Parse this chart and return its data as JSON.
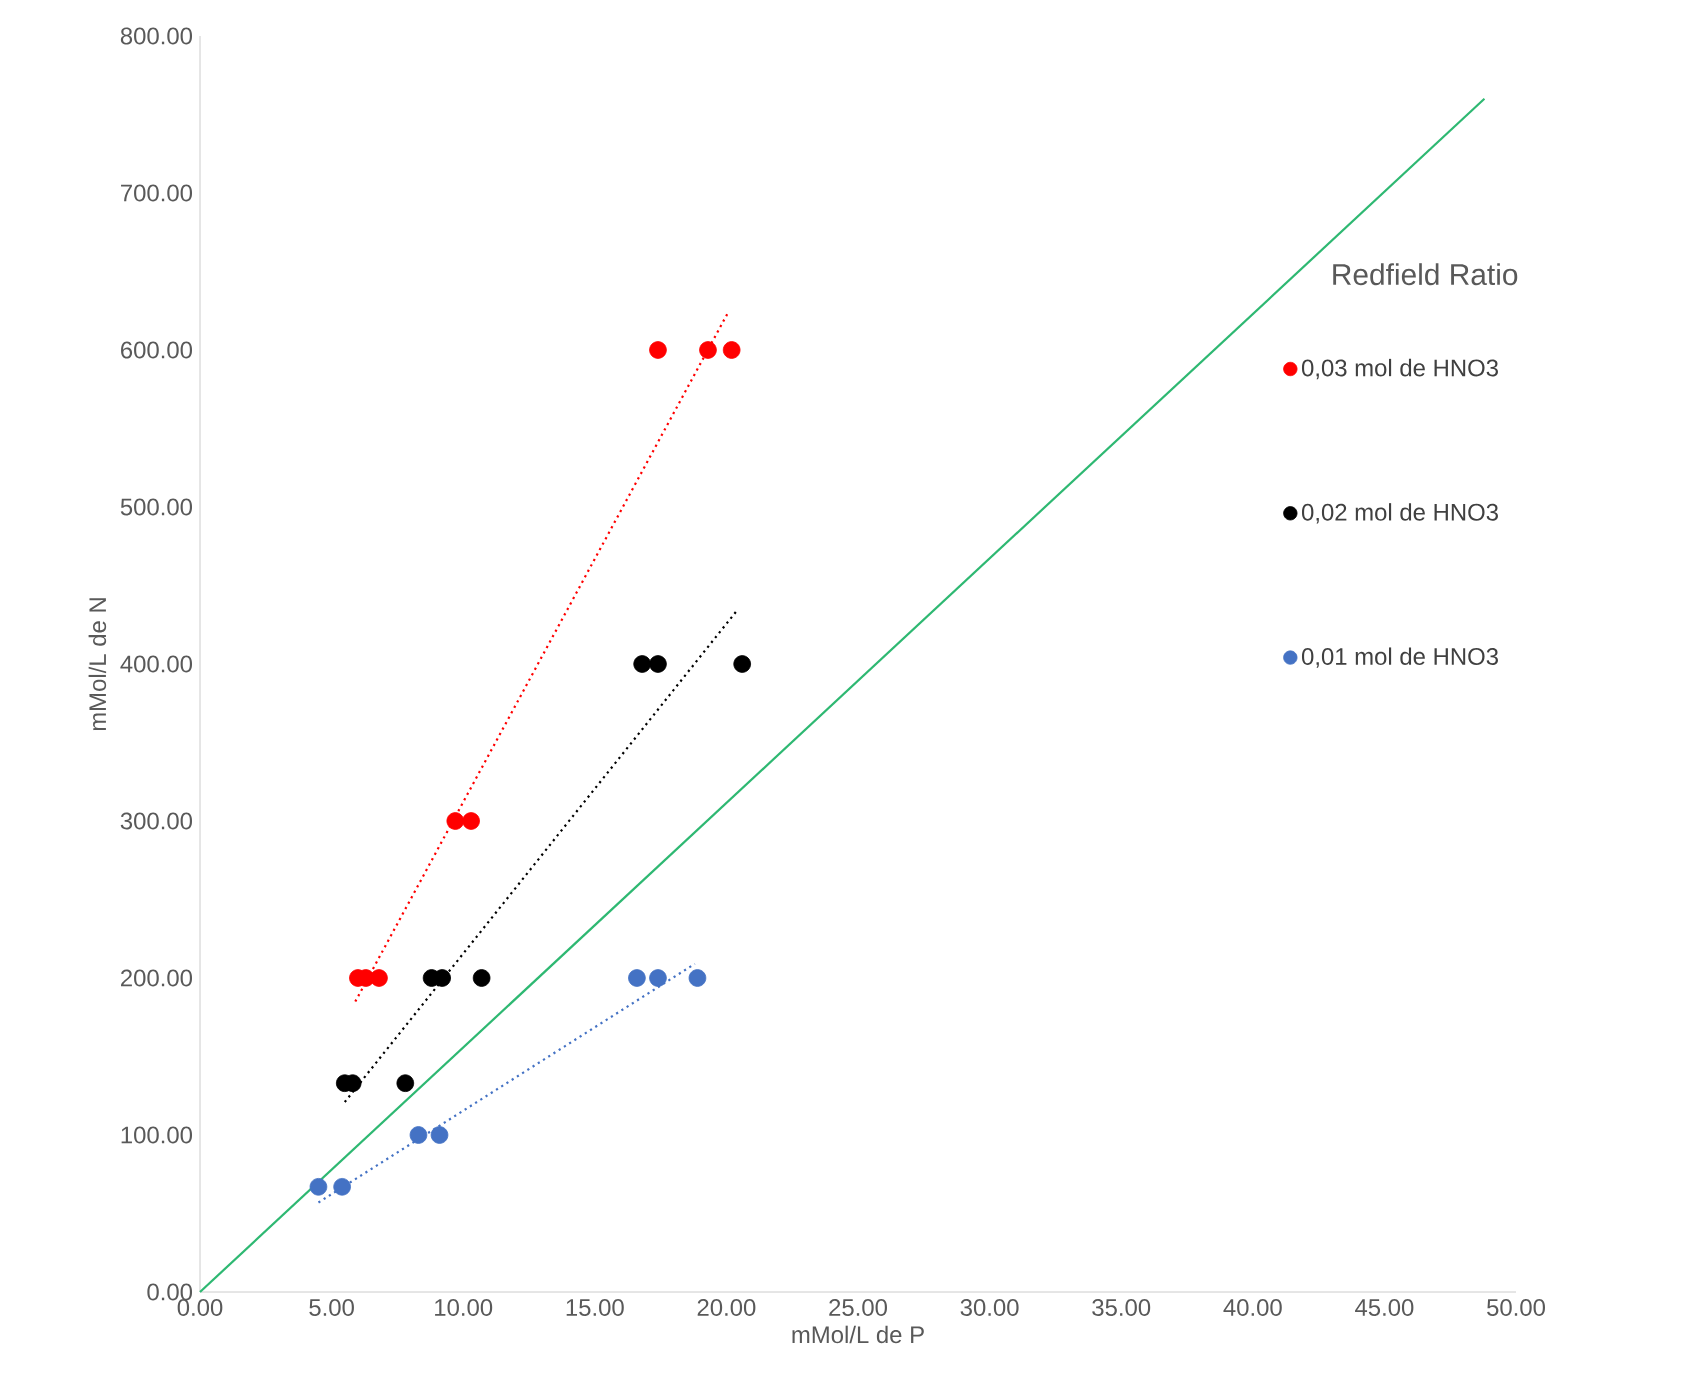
{
  "chart_data": {
    "type": "scatter",
    "xlabel": "mMol/L de P",
    "ylabel": "mMol/L de N",
    "xlim": [
      0,
      50
    ],
    "ylim": [
      0,
      800
    ],
    "xticks": [
      {
        "value": 0,
        "label": "0.00"
      },
      {
        "value": 5,
        "label": "5.00"
      },
      {
        "value": 10,
        "label": "10.00"
      },
      {
        "value": 15,
        "label": "15.00"
      },
      {
        "value": 20,
        "label": "20.00"
      },
      {
        "value": 25,
        "label": "25.00"
      },
      {
        "value": 30,
        "label": "30.00"
      },
      {
        "value": 35,
        "label": "35.00"
      },
      {
        "value": 40,
        "label": "40.00"
      },
      {
        "value": 45,
        "label": "45.00"
      },
      {
        "value": 50,
        "label": "50.00"
      }
    ],
    "yticks": [
      {
        "value": 0,
        "label": "0.00"
      },
      {
        "value": 100,
        "label": "100.00"
      },
      {
        "value": 200,
        "label": "200.00"
      },
      {
        "value": 300,
        "label": "300.00"
      },
      {
        "value": 400,
        "label": "400.00"
      },
      {
        "value": 500,
        "label": "500.00"
      },
      {
        "value": 600,
        "label": "600.00"
      },
      {
        "value": 700,
        "label": "700.00"
      },
      {
        "value": 800,
        "label": "800.00"
      }
    ],
    "grid": false,
    "legend": "right",
    "marker": "circle",
    "series": [
      {
        "name": "0,03 mol de HNO3",
        "color": "#ff0000",
        "x": [
          6.0,
          6.3,
          6.8,
          9.7,
          10.3,
          17.4,
          19.3,
          20.2
        ],
        "values": [
          200,
          200,
          200,
          300,
          300,
          600,
          600,
          600
        ]
      },
      {
        "name": "0,02 mol de HNO3",
        "color": "#000000",
        "x": [
          5.5,
          5.8,
          7.8,
          8.8,
          9.2,
          10.7,
          16.8,
          17.4,
          20.6
        ],
        "values": [
          133,
          133,
          133,
          200,
          200,
          200,
          400,
          400,
          400
        ]
      },
      {
        "name": "0,01 mol de HNO3",
        "color": "#4472c4",
        "x": [
          4.5,
          5.4,
          8.3,
          9.1,
          16.6,
          17.4,
          18.9
        ],
        "values": [
          67,
          67,
          100,
          100,
          200,
          200,
          200
        ]
      },
      {
        "type": "line",
        "color": "#ff0000",
        "line_style": "dotted",
        "marker": "none",
        "x": [
          5.9,
          20.1
        ],
        "values": [
          185,
          625
        ]
      },
      {
        "type": "line",
        "color": "#000000",
        "line_style": "dotted",
        "marker": "none",
        "x": [
          5.5,
          20.4
        ],
        "values": [
          121,
          434
        ]
      },
      {
        "type": "line",
        "color": "#4472c4",
        "line_style": "dotted",
        "marker": "none",
        "x": [
          4.5,
          18.8
        ],
        "values": [
          57,
          209
        ]
      },
      {
        "name": "Redfield Ratio",
        "type": "line",
        "color": "#2eb872",
        "line_style": "solid",
        "marker": "none",
        "x": [
          0,
          48.8
        ],
        "values": [
          0,
          760
        ]
      }
    ]
  }
}
